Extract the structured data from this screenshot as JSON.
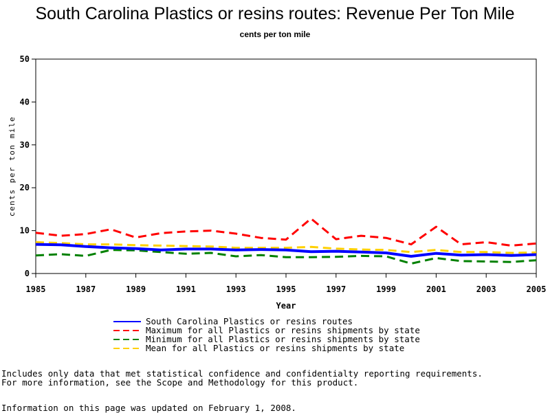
{
  "chart_data": {
    "type": "line",
    "title": "South Carolina Plastics or resins routes: Revenue Per Ton Mile",
    "subtitle": "cents per ton mile",
    "xlabel": "Year",
    "ylabel": "cents per ton mile",
    "xlim": [
      1985,
      2005
    ],
    "ylim": [
      0,
      50
    ],
    "x_ticks": [
      1985,
      1987,
      1989,
      1991,
      1993,
      1995,
      1997,
      1999,
      2001,
      2003,
      2005
    ],
    "y_ticks": [
      0,
      10,
      20,
      30,
      40,
      50
    ],
    "x": [
      1985,
      1986,
      1987,
      1988,
      1989,
      1990,
      1991,
      1992,
      1993,
      1994,
      1995,
      1996,
      1997,
      1998,
      1999,
      2000,
      2001,
      2002,
      2003,
      2004,
      2005
    ],
    "series": [
      {
        "name": "South Carolina Plastics or resins routes",
        "color": "#0000ff",
        "style": "solid",
        "values": [
          6.8,
          6.7,
          6.3,
          6.0,
          5.8,
          5.5,
          5.7,
          5.7,
          5.5,
          5.6,
          5.5,
          5.1,
          5.2,
          5.0,
          4.8,
          4.0,
          4.7,
          4.3,
          4.4,
          4.2,
          4.4
        ]
      },
      {
        "name": "Maximum for all Plastics or resins shipments by state",
        "color": "#ff0000",
        "style": "dashed",
        "values": [
          9.5,
          8.8,
          9.2,
          10.3,
          8.4,
          9.4,
          9.8,
          10.0,
          9.3,
          8.3,
          7.9,
          12.8,
          8.0,
          8.8,
          8.3,
          6.8,
          10.9,
          6.8,
          7.3,
          6.5,
          7.0
        ]
      },
      {
        "name": "Minimum for all Plastics or resins shipments by state",
        "color": "#008000",
        "style": "dashed",
        "values": [
          4.2,
          4.5,
          4.1,
          5.5,
          5.4,
          5.0,
          4.6,
          4.8,
          4.0,
          4.3,
          3.8,
          3.8,
          3.9,
          4.1,
          4.0,
          2.3,
          3.6,
          2.9,
          2.8,
          2.7,
          3.1
        ]
      },
      {
        "name": "Mean for all Plastics or resins shipments by state",
        "color": "#ffd000",
        "style": "dashed",
        "values": [
          7.3,
          7.1,
          6.8,
          6.8,
          6.6,
          6.5,
          6.4,
          6.3,
          6.0,
          6.0,
          6.0,
          6.2,
          5.8,
          5.6,
          5.5,
          5.0,
          5.5,
          5.0,
          5.0,
          4.8,
          4.9
        ]
      }
    ]
  },
  "footer": {
    "note_line1": "Includes only data that met statistical confidence and confidentialty reporting requirements.",
    "note_line2": "For more information, see the Scope and Methodology for this product.",
    "updated": "Information on this page was updated on February 1, 2008."
  }
}
